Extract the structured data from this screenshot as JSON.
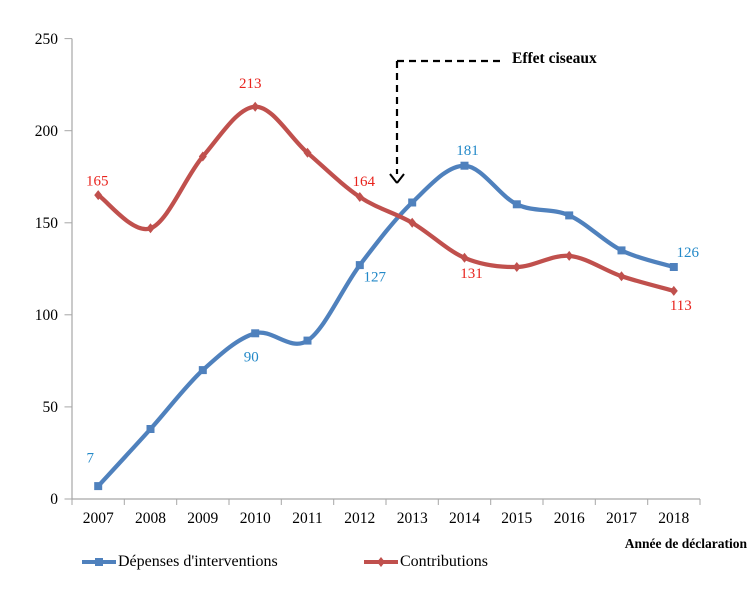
{
  "chart_data": {
    "type": "line",
    "title": "",
    "x_axis_title": "Année de déclaration",
    "categories": [
      "2007",
      "2008",
      "2009",
      "2010",
      "2011",
      "2012",
      "2013",
      "2014",
      "2015",
      "2016",
      "2017",
      "2018"
    ],
    "ylim": [
      0,
      250
    ],
    "y_ticks": [
      0,
      50,
      100,
      150,
      200,
      250
    ],
    "grid": false,
    "legend_position": "bottom",
    "axis_color": "#A6A6A6",
    "annotation": {
      "text": "Effet ciseaux",
      "arrow_style": "dashed",
      "points_to": "crossing between 2012 and 2013"
    },
    "series": [
      {
        "name": "Dépenses d'interventions",
        "color": "#4F81BD",
        "label_color": "#2389C8",
        "marker": "square",
        "smooth": true,
        "values": [
          7,
          38,
          70,
          90,
          86,
          127,
          161,
          181,
          160,
          154,
          135,
          126
        ],
        "data_labels": [
          {
            "category": "2007",
            "value": 7,
            "dx": -8,
            "dy": -29
          },
          {
            "category": "2010",
            "value": 90,
            "dx": -4,
            "dy": 23
          },
          {
            "category": "2012",
            "value": 127,
            "dx": 15,
            "dy": 11
          },
          {
            "category": "2014",
            "value": 181,
            "dx": 3,
            "dy": -16
          },
          {
            "category": "2018",
            "value": 126,
            "dx": 14,
            "dy": -15
          }
        ]
      },
      {
        "name": "Contributions",
        "color": "#C0504D",
        "label_color": "#E8231D",
        "marker": "diamond",
        "smooth": true,
        "values": [
          165,
          147,
          186,
          213,
          188,
          164,
          150,
          131,
          126,
          132,
          121,
          113
        ],
        "data_labels": [
          {
            "category": "2007",
            "value": 165,
            "dx": -1,
            "dy": -15
          },
          {
            "category": "2010",
            "value": 213,
            "dx": -5,
            "dy": -24
          },
          {
            "category": "2012",
            "value": 164,
            "dx": 4,
            "dy": -16
          },
          {
            "category": "2014",
            "value": 131,
            "dx": 7,
            "dy": 15
          },
          {
            "category": "2018",
            "value": 113,
            "dx": 7,
            "dy": 14
          }
        ]
      }
    ]
  }
}
